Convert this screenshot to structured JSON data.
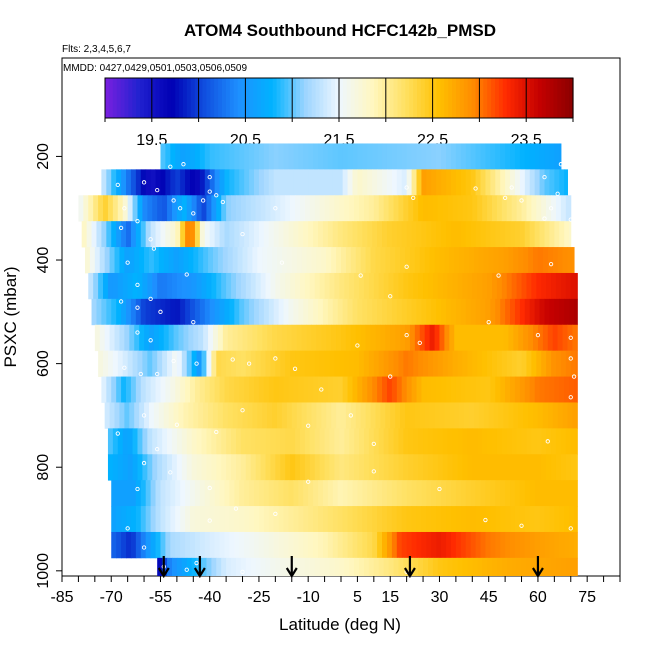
{
  "chart_data": {
    "type": "heatmap",
    "title": "ATOM4 Southbound HCFC142b_PMSD",
    "flights_label": "Flts: 2,3,4,5,6,7",
    "dates_label": "MMDD: 0427,0429,0501,0503,0506,0509",
    "xlabel": "Latitude (deg N)",
    "ylabel": "PSXC (mbar)",
    "xlim": [
      -85,
      85
    ],
    "ylim": [
      1010,
      10
    ],
    "x_ticks": [
      -85,
      -70,
      -55,
      -40,
      -25,
      -10,
      5,
      15,
      30,
      45,
      60,
      75
    ],
    "y_ticks": [
      200,
      400,
      600,
      800,
      1000
    ],
    "colorbar": {
      "min": 19.0,
      "max": 24.0,
      "tick_values": [
        19.5,
        20.5,
        21.5,
        22.5,
        23.5
      ],
      "tick_labels": [
        "19.5",
        "20.5",
        "21.5",
        "22.5",
        "23.5"
      ],
      "colors": [
        "#7a1fe0",
        "#2222d0",
        "#0000b4",
        "#1050e0",
        "#1e90ff",
        "#00b2ff",
        "#9dd5ff",
        "#eef7ff",
        "#fff7c0",
        "#ffe060",
        "#ffc000",
        "#ff8c00",
        "#ff2a00",
        "#c40000",
        "#8b0000"
      ]
    },
    "levels_mbar": [
      200,
      250,
      300,
      350,
      400,
      450,
      500,
      550,
      600,
      650,
      700,
      750,
      800,
      850,
      900,
      950,
      1000
    ],
    "level_rows": [
      {
        "p": 200,
        "lat0": -55,
        "lat1": 67,
        "stops": [
          [
            -55,
            21.0
          ],
          [
            -48,
            20.6
          ],
          [
            -40,
            20.9
          ],
          [
            -20,
            21.1
          ],
          [
            0,
            21.0
          ],
          [
            30,
            21.1
          ],
          [
            55,
            20.8
          ],
          [
            67,
            20.6
          ]
        ]
      },
      {
        "p": 250,
        "lat0": -73,
        "lat1": 69,
        "stops": [
          [
            -73,
            21.4
          ],
          [
            -65,
            20.3
          ],
          [
            -58,
            19.5
          ],
          [
            -50,
            20.0
          ],
          [
            -44,
            19.6
          ],
          [
            -35,
            20.8
          ],
          [
            -20,
            21.3
          ],
          [
            0,
            21.3
          ],
          [
            5,
            21.8
          ],
          [
            20,
            21.4
          ],
          [
            25,
            22.8
          ],
          [
            40,
            22.5
          ],
          [
            55,
            21.5
          ],
          [
            62,
            21.0
          ],
          [
            69,
            20.8
          ]
        ]
      },
      {
        "p": 300,
        "lat0": -80,
        "lat1": 70,
        "stops": [
          [
            -80,
            21.5
          ],
          [
            -72,
            22.4
          ],
          [
            -66,
            21.8
          ],
          [
            -60,
            20.4
          ],
          [
            -54,
            20.1
          ],
          [
            -48,
            20.8
          ],
          [
            -42,
            20.0
          ],
          [
            -35,
            21.1
          ],
          [
            -20,
            21.4
          ],
          [
            0,
            21.8
          ],
          [
            10,
            22.0
          ],
          [
            25,
            22.6
          ],
          [
            40,
            22.5
          ],
          [
            55,
            22.0
          ],
          [
            70,
            21.3
          ]
        ]
      },
      {
        "p": 350,
        "lat0": -79,
        "lat1": 70,
        "stops": [
          [
            -79,
            21.9
          ],
          [
            -72,
            21.1
          ],
          [
            -65,
            20.2
          ],
          [
            -58,
            21.3
          ],
          [
            -50,
            21.8
          ],
          [
            -46,
            23.2
          ],
          [
            -42,
            21.6
          ],
          [
            -35,
            21.2
          ],
          [
            -20,
            21.6
          ],
          [
            0,
            22.1
          ],
          [
            15,
            22.4
          ],
          [
            35,
            22.6
          ],
          [
            55,
            22.4
          ],
          [
            70,
            21.8
          ]
        ]
      },
      {
        "p": 400,
        "lat0": -78,
        "lat1": 71,
        "stops": [
          [
            -78,
            21.8
          ],
          [
            -72,
            21.2
          ],
          [
            -65,
            20.6
          ],
          [
            -58,
            20.9
          ],
          [
            -50,
            20.6
          ],
          [
            -40,
            21.0
          ],
          [
            -25,
            21.5
          ],
          [
            -5,
            21.8
          ],
          [
            10,
            22.3
          ],
          [
            30,
            22.6
          ],
          [
            50,
            22.8
          ],
          [
            60,
            23.0
          ],
          [
            71,
            22.9
          ]
        ]
      },
      {
        "p": 450,
        "lat0": -77,
        "lat1": 72,
        "stops": [
          [
            -77,
            21.4
          ],
          [
            -70,
            20.5
          ],
          [
            -62,
            20.8
          ],
          [
            -55,
            20.3
          ],
          [
            -45,
            20.5
          ],
          [
            -35,
            21.0
          ],
          [
            -20,
            21.6
          ],
          [
            0,
            22.1
          ],
          [
            20,
            22.5
          ],
          [
            45,
            22.8
          ],
          [
            60,
            23.3
          ],
          [
            72,
            23.5
          ]
        ]
      },
      {
        "p": 500,
        "lat0": -76,
        "lat1": 72,
        "stops": [
          [
            -76,
            21.2
          ],
          [
            -68,
            20.8
          ],
          [
            -60,
            20.0
          ],
          [
            -50,
            19.8
          ],
          [
            -40,
            20.4
          ],
          [
            -30,
            21.0
          ],
          [
            -15,
            21.6
          ],
          [
            5,
            22.2
          ],
          [
            25,
            22.5
          ],
          [
            45,
            22.8
          ],
          [
            62,
            23.6
          ],
          [
            72,
            23.8
          ]
        ]
      },
      {
        "p": 550,
        "lat0": -75,
        "lat1": 72,
        "stops": [
          [
            -75,
            21.7
          ],
          [
            -66,
            21.2
          ],
          [
            -58,
            20.6
          ],
          [
            -50,
            21.0
          ],
          [
            -42,
            21.3
          ],
          [
            -35,
            22.0
          ],
          [
            -20,
            22.3
          ],
          [
            0,
            22.5
          ],
          [
            20,
            22.8
          ],
          [
            28,
            23.4
          ],
          [
            35,
            22.6
          ],
          [
            50,
            22.6
          ],
          [
            65,
            23.2
          ],
          [
            72,
            23.0
          ]
        ]
      },
      {
        "p": 600,
        "lat0": -74,
        "lat1": 72,
        "stops": [
          [
            -74,
            21.7
          ],
          [
            -66,
            21.4
          ],
          [
            -58,
            21.0
          ],
          [
            -50,
            21.6
          ],
          [
            -43,
            20.5
          ],
          [
            -38,
            22.3
          ],
          [
            -30,
            22.2
          ],
          [
            -15,
            22.5
          ],
          [
            5,
            22.6
          ],
          [
            20,
            23.0
          ],
          [
            35,
            22.7
          ],
          [
            55,
            22.4
          ],
          [
            65,
            22.9
          ],
          [
            72,
            23.0
          ]
        ]
      },
      {
        "p": 650,
        "lat0": -73,
        "lat1": 72,
        "stops": [
          [
            -73,
            21.5
          ],
          [
            -66,
            20.8
          ],
          [
            -60,
            21.3
          ],
          [
            -52,
            21.6
          ],
          [
            -44,
            22.0
          ],
          [
            -35,
            22.3
          ],
          [
            -20,
            22.5
          ],
          [
            0,
            22.4
          ],
          [
            15,
            23.2
          ],
          [
            25,
            22.6
          ],
          [
            45,
            22.5
          ],
          [
            60,
            23.0
          ],
          [
            72,
            23.1
          ]
        ]
      },
      {
        "p": 700,
        "lat0": -72,
        "lat1": 72,
        "stops": [
          [
            -72,
            21.4
          ],
          [
            -65,
            21.0
          ],
          [
            -58,
            21.5
          ],
          [
            -48,
            21.9
          ],
          [
            -35,
            22.2
          ],
          [
            -20,
            22.4
          ],
          [
            0,
            22.0
          ],
          [
            20,
            22.5
          ],
          [
            40,
            22.4
          ],
          [
            60,
            22.6
          ],
          [
            72,
            22.8
          ]
        ]
      },
      {
        "p": 750,
        "lat0": -71,
        "lat1": 72,
        "stops": [
          [
            -71,
            21.0
          ],
          [
            -65,
            20.6
          ],
          [
            -58,
            21.3
          ],
          [
            -45,
            21.8
          ],
          [
            -30,
            22.2
          ],
          [
            -15,
            22.3
          ],
          [
            0,
            22.0
          ],
          [
            20,
            22.5
          ],
          [
            40,
            22.6
          ],
          [
            60,
            22.5
          ],
          [
            72,
            22.6
          ]
        ]
      },
      {
        "p": 800,
        "lat0": -71,
        "lat1": 72,
        "stops": [
          [
            -71,
            20.8
          ],
          [
            -64,
            20.6
          ],
          [
            -56,
            21.2
          ],
          [
            -45,
            21.7
          ],
          [
            -30,
            22.0
          ],
          [
            -15,
            22.5
          ],
          [
            0,
            22.1
          ],
          [
            20,
            22.4
          ],
          [
            40,
            22.6
          ],
          [
            60,
            22.6
          ],
          [
            72,
            22.5
          ]
        ]
      },
      {
        "p": 850,
        "lat0": -70,
        "lat1": 72,
        "stops": [
          [
            -70,
            20.6
          ],
          [
            -63,
            20.6
          ],
          [
            -55,
            21.3
          ],
          [
            -45,
            21.6
          ],
          [
            -30,
            22.0
          ],
          [
            -15,
            22.2
          ],
          [
            0,
            21.9
          ],
          [
            20,
            22.2
          ],
          [
            40,
            22.4
          ],
          [
            60,
            22.6
          ],
          [
            72,
            22.6
          ]
        ]
      },
      {
        "p": 900,
        "lat0": -70,
        "lat1": 72,
        "stops": [
          [
            -70,
            20.6
          ],
          [
            -62,
            20.8
          ],
          [
            -55,
            21.3
          ],
          [
            -45,
            21.7
          ],
          [
            -30,
            21.8
          ],
          [
            -15,
            22.0
          ],
          [
            0,
            22.2
          ],
          [
            20,
            22.5
          ],
          [
            40,
            22.6
          ],
          [
            60,
            22.5
          ],
          [
            72,
            22.6
          ]
        ]
      },
      {
        "p": 950,
        "lat0": -70,
        "lat1": 72,
        "stops": [
          [
            -70,
            20.2
          ],
          [
            -64,
            19.9
          ],
          [
            -58,
            20.6
          ],
          [
            -52,
            21.2
          ],
          [
            -40,
            21.4
          ],
          [
            -25,
            21.6
          ],
          [
            -5,
            21.9
          ],
          [
            10,
            22.3
          ],
          [
            18,
            23.2
          ],
          [
            30,
            23.4
          ],
          [
            45,
            23.0
          ],
          [
            60,
            22.8
          ],
          [
            72,
            22.7
          ]
        ]
      },
      {
        "p": 1000,
        "lat0": -56,
        "lat1": 72,
        "stops": [
          [
            -56,
            19.6
          ],
          [
            -52,
            20.4
          ],
          [
            -45,
            20.8
          ],
          [
            -35,
            21.4
          ],
          [
            -20,
            21.6
          ],
          [
            0,
            21.8
          ],
          [
            15,
            22.1
          ],
          [
            30,
            22.5
          ],
          [
            50,
            22.7
          ],
          [
            72,
            22.8
          ]
        ]
      }
    ],
    "samples": [
      [
        -52,
        220
      ],
      [
        -48,
        215
      ],
      [
        -40,
        240
      ],
      [
        67,
        215
      ],
      [
        62,
        240
      ],
      [
        -60,
        250
      ],
      [
        -56,
        265
      ],
      [
        -68,
        255
      ],
      [
        -66,
        300
      ],
      [
        -51,
        285
      ],
      [
        -49,
        300
      ],
      [
        -45,
        310
      ],
      [
        -42,
        285
      ],
      [
        -36,
        288
      ],
      [
        -38,
        275
      ],
      [
        -62,
        325
      ],
      [
        -58,
        360
      ],
      [
        -67,
        338
      ],
      [
        -57,
        378
      ],
      [
        -47,
        428
      ],
      [
        -65,
        405
      ],
      [
        -62,
        448
      ],
      [
        -58,
        475
      ],
      [
        -62,
        492
      ],
      [
        -40,
        268
      ],
      [
        -30,
        350
      ],
      [
        -20,
        300
      ],
      [
        -18,
        405
      ],
      [
        20,
        260
      ],
      [
        22,
        280
      ],
      [
        41,
        262
      ],
      [
        52,
        260
      ],
      [
        50,
        280
      ],
      [
        66,
        272
      ],
      [
        55,
        285
      ],
      [
        62,
        320
      ],
      [
        70,
        322
      ],
      [
        64,
        300
      ],
      [
        6,
        430
      ],
      [
        20,
        413
      ],
      [
        48,
        430
      ],
      [
        64,
        408
      ],
      [
        15,
        470
      ],
      [
        60,
        545
      ],
      [
        70,
        550
      ],
      [
        70,
        590
      ],
      [
        45,
        520
      ],
      [
        20,
        545
      ],
      [
        24,
        560
      ],
      [
        5,
        565
      ],
      [
        -20,
        590
      ],
      [
        -33,
        592
      ],
      [
        -44,
        600
      ],
      [
        -51,
        595
      ],
      [
        -66,
        608
      ],
      [
        -61,
        620
      ],
      [
        -56,
        620
      ],
      [
        -62,
        540
      ],
      [
        -58,
        555
      ],
      [
        -67,
        480
      ],
      [
        -55,
        500
      ],
      [
        -45,
        520
      ],
      [
        -28,
        600
      ],
      [
        -14,
        610
      ],
      [
        -6,
        650
      ],
      [
        15,
        625
      ],
      [
        70,
        665
      ],
      [
        71,
        625
      ],
      [
        63,
        750
      ],
      [
        -60,
        700
      ],
      [
        -56,
        765
      ],
      [
        -68,
        735
      ],
      [
        -60,
        792
      ],
      [
        -50,
        718
      ],
      [
        -38,
        732
      ],
      [
        -30,
        690
      ],
      [
        -10,
        720
      ],
      [
        3,
        700
      ],
      [
        10,
        755
      ],
      [
        -62,
        842
      ],
      [
        -52,
        810
      ],
      [
        -40,
        840
      ],
      [
        -32,
        880
      ],
      [
        -40,
        903
      ],
      [
        -20,
        890
      ],
      [
        -10,
        828
      ],
      [
        10,
        808
      ],
      [
        30,
        842
      ],
      [
        44,
        902
      ],
      [
        55,
        913
      ],
      [
        70,
        918
      ],
      [
        -65,
        918
      ],
      [
        -60,
        955
      ],
      [
        -44,
        985
      ],
      [
        -54,
        992
      ],
      [
        -47,
        998
      ],
      [
        -30,
        1002
      ],
      [
        -15,
        1002
      ],
      [
        20,
        1002
      ]
    ],
    "arrows_lat": [
      -54,
      -43,
      -15,
      21,
      60
    ]
  }
}
